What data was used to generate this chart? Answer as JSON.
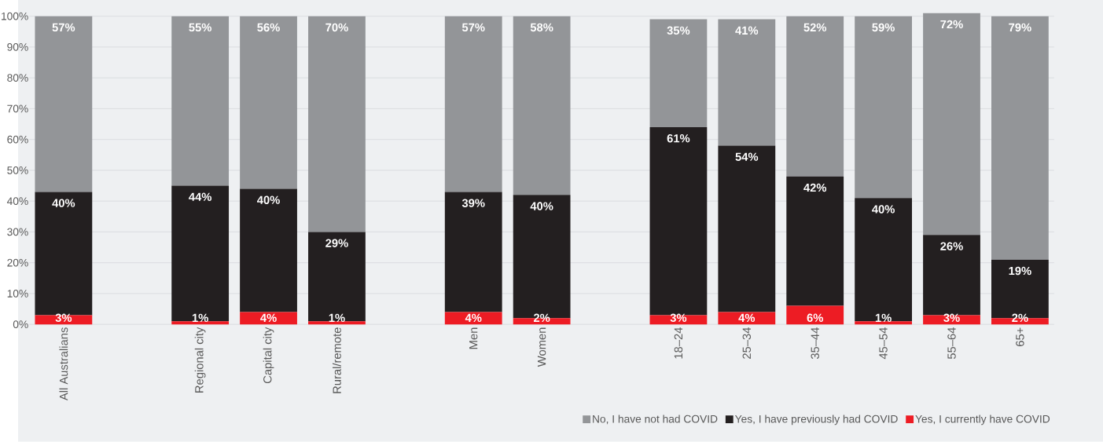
{
  "chart_data": {
    "type": "bar",
    "stacked": true,
    "grid": "y",
    "legend": "bottom right",
    "categories": [
      "All Australians",
      null,
      "Regional city",
      "Capital city",
      "Rural/remote",
      null,
      "Men",
      "Women",
      null,
      "18–24",
      "25–34",
      "35–44",
      "45–54",
      "55–64",
      "65+"
    ],
    "series": [
      {
        "name": "Yes, I currently have COVID",
        "color": "#ed1c24",
        "values": [
          3,
          null,
          1,
          4,
          1,
          null,
          4,
          2,
          null,
          3,
          4,
          6,
          1,
          3,
          2
        ],
        "value_labels": [
          "3%",
          null,
          "1%",
          "4%",
          "1%",
          null,
          "4%",
          "2%",
          null,
          "3%",
          "4%",
          "6%",
          "1%",
          "3%",
          "2%"
        ]
      },
      {
        "name": "Yes, I have previously had COVID",
        "color": "#231f20",
        "values": [
          40,
          null,
          44,
          40,
          29,
          null,
          39,
          40,
          null,
          61,
          54,
          42,
          40,
          26,
          19
        ],
        "value_labels": [
          "40%",
          null,
          "44%",
          "40%",
          "29%",
          null,
          "39%",
          "40%",
          null,
          "61%",
          "54%",
          "42%",
          "40%",
          "26%",
          "19%"
        ]
      },
      {
        "name": "No, I have not had COVID",
        "color": "#939598",
        "values": [
          57,
          null,
          55,
          56,
          70,
          null,
          57,
          58,
          null,
          35,
          41,
          52,
          59,
          72,
          79
        ],
        "value_labels": [
          "57%",
          null,
          "55%",
          "56%",
          "70%",
          null,
          "57%",
          "58%",
          null,
          "35%",
          "41%",
          "52%",
          "59%",
          "72%",
          "79%"
        ]
      }
    ],
    "ylim": [
      0,
      101
    ],
    "yticks": [
      {
        "value": 0,
        "label": "0%"
      },
      {
        "value": 10,
        "label": "10%"
      },
      {
        "value": 20,
        "label": "20%"
      },
      {
        "value": 30,
        "label": "30%"
      },
      {
        "value": 40,
        "label": "40%"
      },
      {
        "value": 50,
        "label": "50%"
      },
      {
        "value": 60,
        "label": "60%"
      },
      {
        "value": 70,
        "label": "70%"
      },
      {
        "value": 80,
        "label": "80%"
      },
      {
        "value": 90,
        "label": "90%"
      },
      {
        "value": 100,
        "label": "100%"
      }
    ]
  }
}
